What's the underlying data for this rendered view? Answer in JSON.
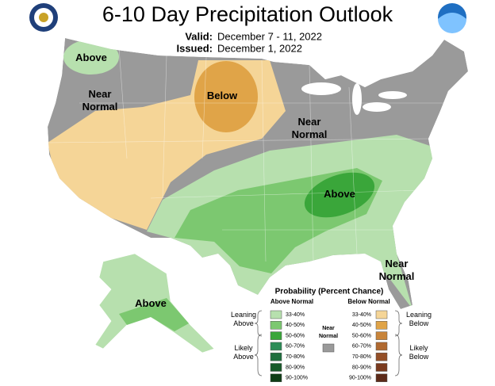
{
  "header": {
    "title": "6-10 Day Precipitation Outlook",
    "valid_label": "Valid:",
    "valid": "December 7 - 11, 2022",
    "issued_label": "Issued:",
    "issued": "December 1, 2022"
  },
  "map_labels": [
    {
      "lines": [
        "Above"
      ]
    },
    {
      "lines": [
        "Near",
        "Normal"
      ]
    },
    {
      "lines": [
        "Below"
      ]
    },
    {
      "lines": [
        "Near",
        "Normal"
      ]
    },
    {
      "lines": [
        "Above"
      ]
    },
    {
      "lines": [
        "Near",
        "Normal"
      ]
    },
    {
      "lines": [
        "Above"
      ]
    }
  ],
  "legend": {
    "title": "Probability (Percent Chance)",
    "above_heading": "Above Normal",
    "below_heading": "Below Normal",
    "ranges": [
      "33-40%",
      "40-50%",
      "50-60%",
      "60-70%",
      "70-80%",
      "80-90%",
      "90-100%"
    ],
    "above_colors": [
      "#b7e0ae",
      "#7cc870",
      "#3aa63a",
      "#2c8c56",
      "#1f6f3e",
      "#185a2a",
      "#0f3d16"
    ],
    "below_colors": [
      "#f5d597",
      "#e0a448",
      "#c8843a",
      "#b06930",
      "#944f27",
      "#7a3a1e",
      "#5c2a18"
    ],
    "near_color": "#9a9a9a",
    "near_label": [
      "Near",
      "Normal"
    ],
    "leaning_above": [
      "Leaning",
      "Above"
    ],
    "likely_above": [
      "Likely",
      "Above"
    ],
    "leaning_below": [
      "Leaning",
      "Below"
    ],
    "likely_below": [
      "Likely",
      "Below"
    ]
  }
}
